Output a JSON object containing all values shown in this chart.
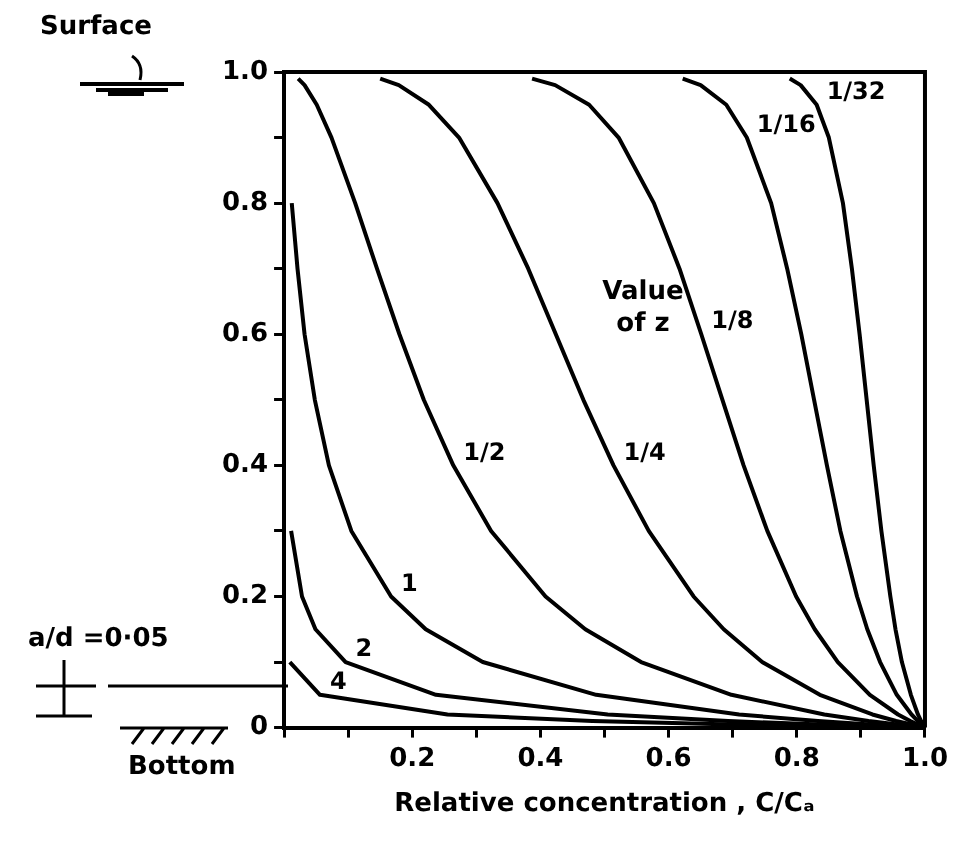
{
  "chart_data": {
    "type": "line",
    "xlabel": "Relative concentration , C/Cₐ",
    "legend_title": "Value of z",
    "annotations": [
      "Surface",
      "a/d =0·05",
      "Bottom"
    ],
    "xlim": [
      0,
      1
    ],
    "ylim": [
      0,
      1
    ],
    "xticks": [
      {
        "value": 0,
        "label": null
      },
      {
        "value": 0.1,
        "label": null
      },
      0.2,
      {
        "value": 0.3,
        "label": null
      },
      0.4,
      {
        "value": 0.5,
        "label": null
      },
      0.6,
      {
        "value": 0.7,
        "label": null
      },
      0.8,
      {
        "value": 0.9,
        "label": null
      },
      {
        "value": 1,
        "label": "1.0"
      }
    ],
    "yticks": [
      0,
      {
        "value": 0.1,
        "label": null
      },
      0.2,
      {
        "value": 0.3,
        "label": null
      },
      0.4,
      {
        "value": 0.5,
        "label": null
      },
      0.6,
      {
        "value": 0.7,
        "label": null
      },
      0.8,
      {
        "value": 0.9,
        "label": null
      },
      {
        "value": 1,
        "label": "1.0"
      }
    ],
    "grid": false,
    "legend": false,
    "marker": "none",
    "line_style": "solid",
    "series": [
      {
        "name": "1/32",
        "color": "#000000",
        "x": [
          1,
          0.997,
          0.994,
          0.989,
          0.978,
          0.964,
          0.954,
          0.946,
          0.932,
          0.92,
          0.909,
          0.898,
          0.886,
          0.872,
          0.85,
          0.831,
          0.806,
          0.789
        ],
        "values": [
          0,
          0.005,
          0.01,
          0.02,
          0.05,
          0.1,
          0.15,
          0.2,
          0.3,
          0.4,
          0.5,
          0.6,
          0.7,
          0.8,
          0.9,
          0.95,
          0.98,
          0.99
        ]
      },
      {
        "name": "1/16",
        "color": "#000000",
        "x": [
          1,
          0.994,
          0.989,
          0.979,
          0.956,
          0.93,
          0.91,
          0.894,
          0.868,
          0.847,
          0.827,
          0.807,
          0.785,
          0.76,
          0.722,
          0.69,
          0.65,
          0.622
        ],
        "values": [
          0,
          0.005,
          0.01,
          0.02,
          0.05,
          0.1,
          0.15,
          0.2,
          0.3,
          0.4,
          0.5,
          0.6,
          0.7,
          0.8,
          0.9,
          0.95,
          0.98,
          0.99
        ]
      },
      {
        "name": "1/8",
        "color": "#000000",
        "x": [
          1,
          0.988,
          0.977,
          0.958,
          0.914,
          0.864,
          0.828,
          0.799,
          0.754,
          0.717,
          0.684,
          0.651,
          0.617,
          0.577,
          0.522,
          0.476,
          0.423,
          0.387
        ],
        "values": [
          0,
          0.005,
          0.01,
          0.02,
          0.05,
          0.1,
          0.15,
          0.2,
          0.3,
          0.4,
          0.5,
          0.6,
          0.7,
          0.8,
          0.9,
          0.95,
          0.98,
          0.99
        ]
      },
      {
        "name": "1/4",
        "color": "#000000",
        "x": [
          1,
          0.977,
          0.955,
          0.918,
          0.836,
          0.746,
          0.686,
          0.639,
          0.569,
          0.514,
          0.467,
          0.424,
          0.381,
          0.333,
          0.273,
          0.226,
          0.179,
          0.15
        ],
        "values": [
          0,
          0.005,
          0.01,
          0.02,
          0.05,
          0.1,
          0.15,
          0.2,
          0.3,
          0.4,
          0.5,
          0.6,
          0.7,
          0.8,
          0.9,
          0.95,
          0.98,
          0.99
        ]
      },
      {
        "name": "1/2",
        "color": "#000000",
        "x": [
          1,
          0.954,
          0.912,
          0.843,
          0.698,
          0.557,
          0.47,
          0.408,
          0.323,
          0.264,
          0.218,
          0.18,
          0.145,
          0.111,
          0.074,
          0.051,
          0.032,
          0.022
        ],
        "values": [
          0,
          0.005,
          0.01,
          0.02,
          0.05,
          0.1,
          0.15,
          0.2,
          0.3,
          0.4,
          0.5,
          0.6,
          0.7,
          0.8,
          0.9,
          0.95,
          0.98,
          0.99
        ]
      },
      {
        "name": "1",
        "color": "#000000",
        "x": [
          1,
          0.909,
          0.833,
          0.71,
          0.487,
          0.31,
          0.221,
          0.167,
          0.105,
          0.07,
          0.048,
          0.032,
          0.021,
          0.012
        ],
        "values": [
          0,
          0.005,
          0.01,
          0.02,
          0.05,
          0.1,
          0.15,
          0.2,
          0.3,
          0.4,
          0.5,
          0.6,
          0.7,
          0.8
        ]
      },
      {
        "name": "2",
        "color": "#000000",
        "x": [
          1,
          0.827,
          0.693,
          0.505,
          0.237,
          0.096,
          0.049,
          0.028,
          0.011
        ],
        "values": [
          0,
          0.005,
          0.01,
          0.02,
          0.05,
          0.1,
          0.15,
          0.2,
          0.3
        ]
      },
      {
        "name": "4",
        "color": "#000000",
        "x": [
          1,
          0.684,
          0.481,
          0.255,
          0.056,
          0.009
        ],
        "values": [
          0,
          0.005,
          0.01,
          0.02,
          0.05,
          0.1
        ]
      }
    ]
  }
}
